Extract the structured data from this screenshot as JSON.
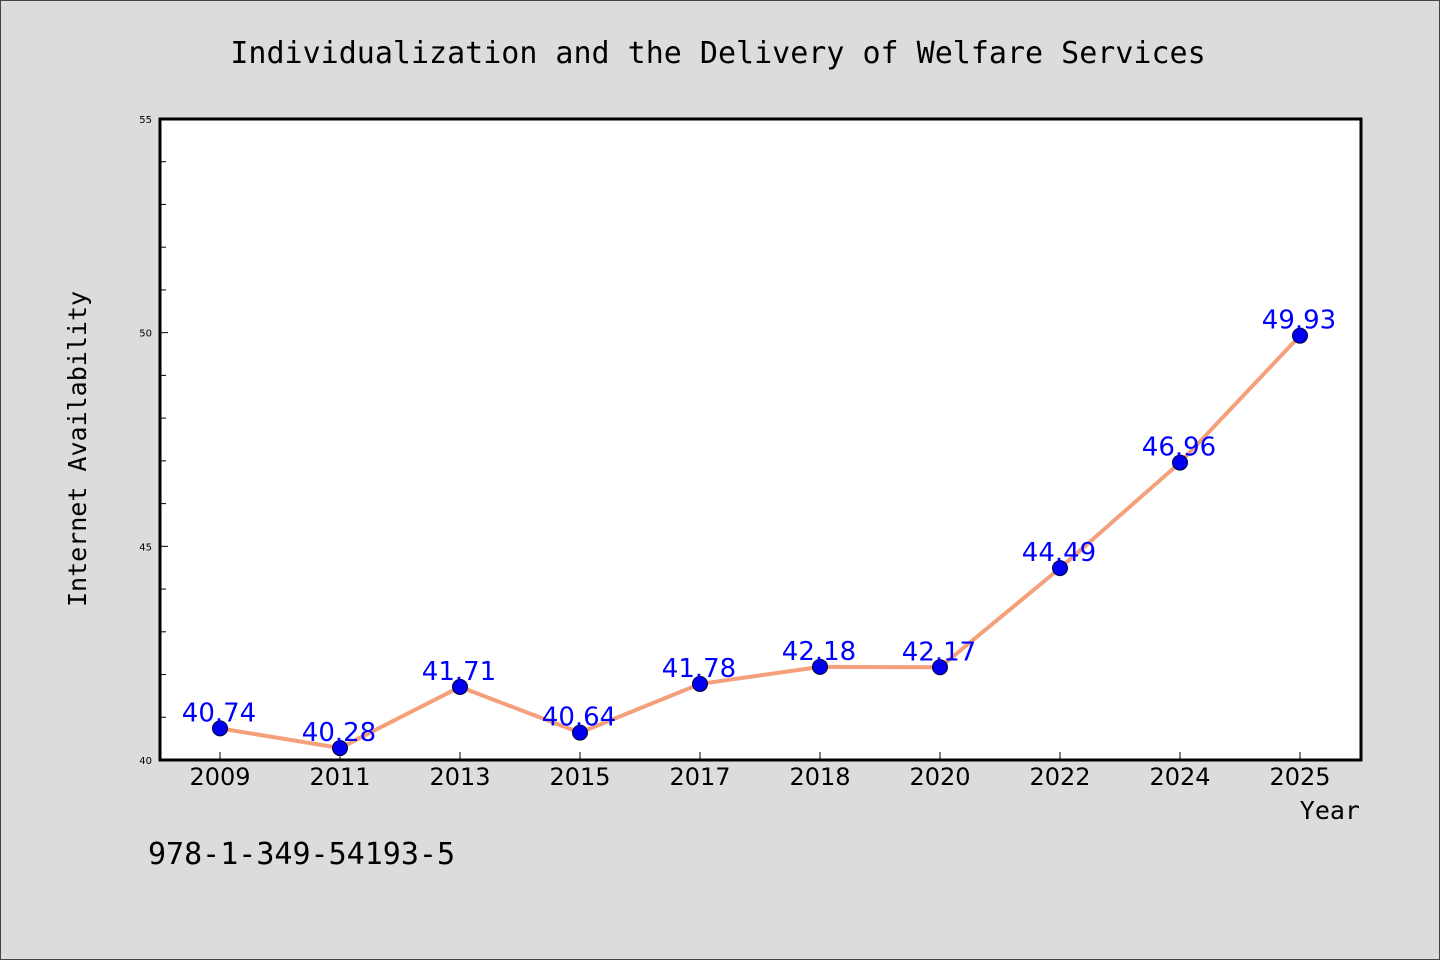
{
  "chart_data": {
    "type": "line",
    "title": "Individualization and the Delivery of Welfare Services",
    "xlabel": "Year",
    "ylabel": "Internet Availability",
    "categories": [
      "2009",
      "2011",
      "2013",
      "2015",
      "2017",
      "2018",
      "2020",
      "2022",
      "2024",
      "2025"
    ],
    "series": [
      {
        "values": [
          40.74,
          40.28,
          41.71,
          40.64,
          41.78,
          42.18,
          42.17,
          44.49,
          46.96,
          49.93
        ],
        "data_labels": [
          "40.74",
          "40.28",
          "41.71",
          "40.64",
          "41.78",
          "42.18",
          "42.17",
          "44.49",
          "46.96",
          "49.93"
        ]
      }
    ],
    "ylim": [
      40,
      55
    ],
    "yticks": [
      "40",
      "45",
      "50",
      "55"
    ],
    "grid": false,
    "colors": {
      "line": "#f4a07a",
      "marker": "#0000ee",
      "data_label": "#0000ff",
      "background": "#dcdcdc",
      "plot_area": "#ffffff"
    }
  },
  "caption": "978-1-349-54193-5"
}
